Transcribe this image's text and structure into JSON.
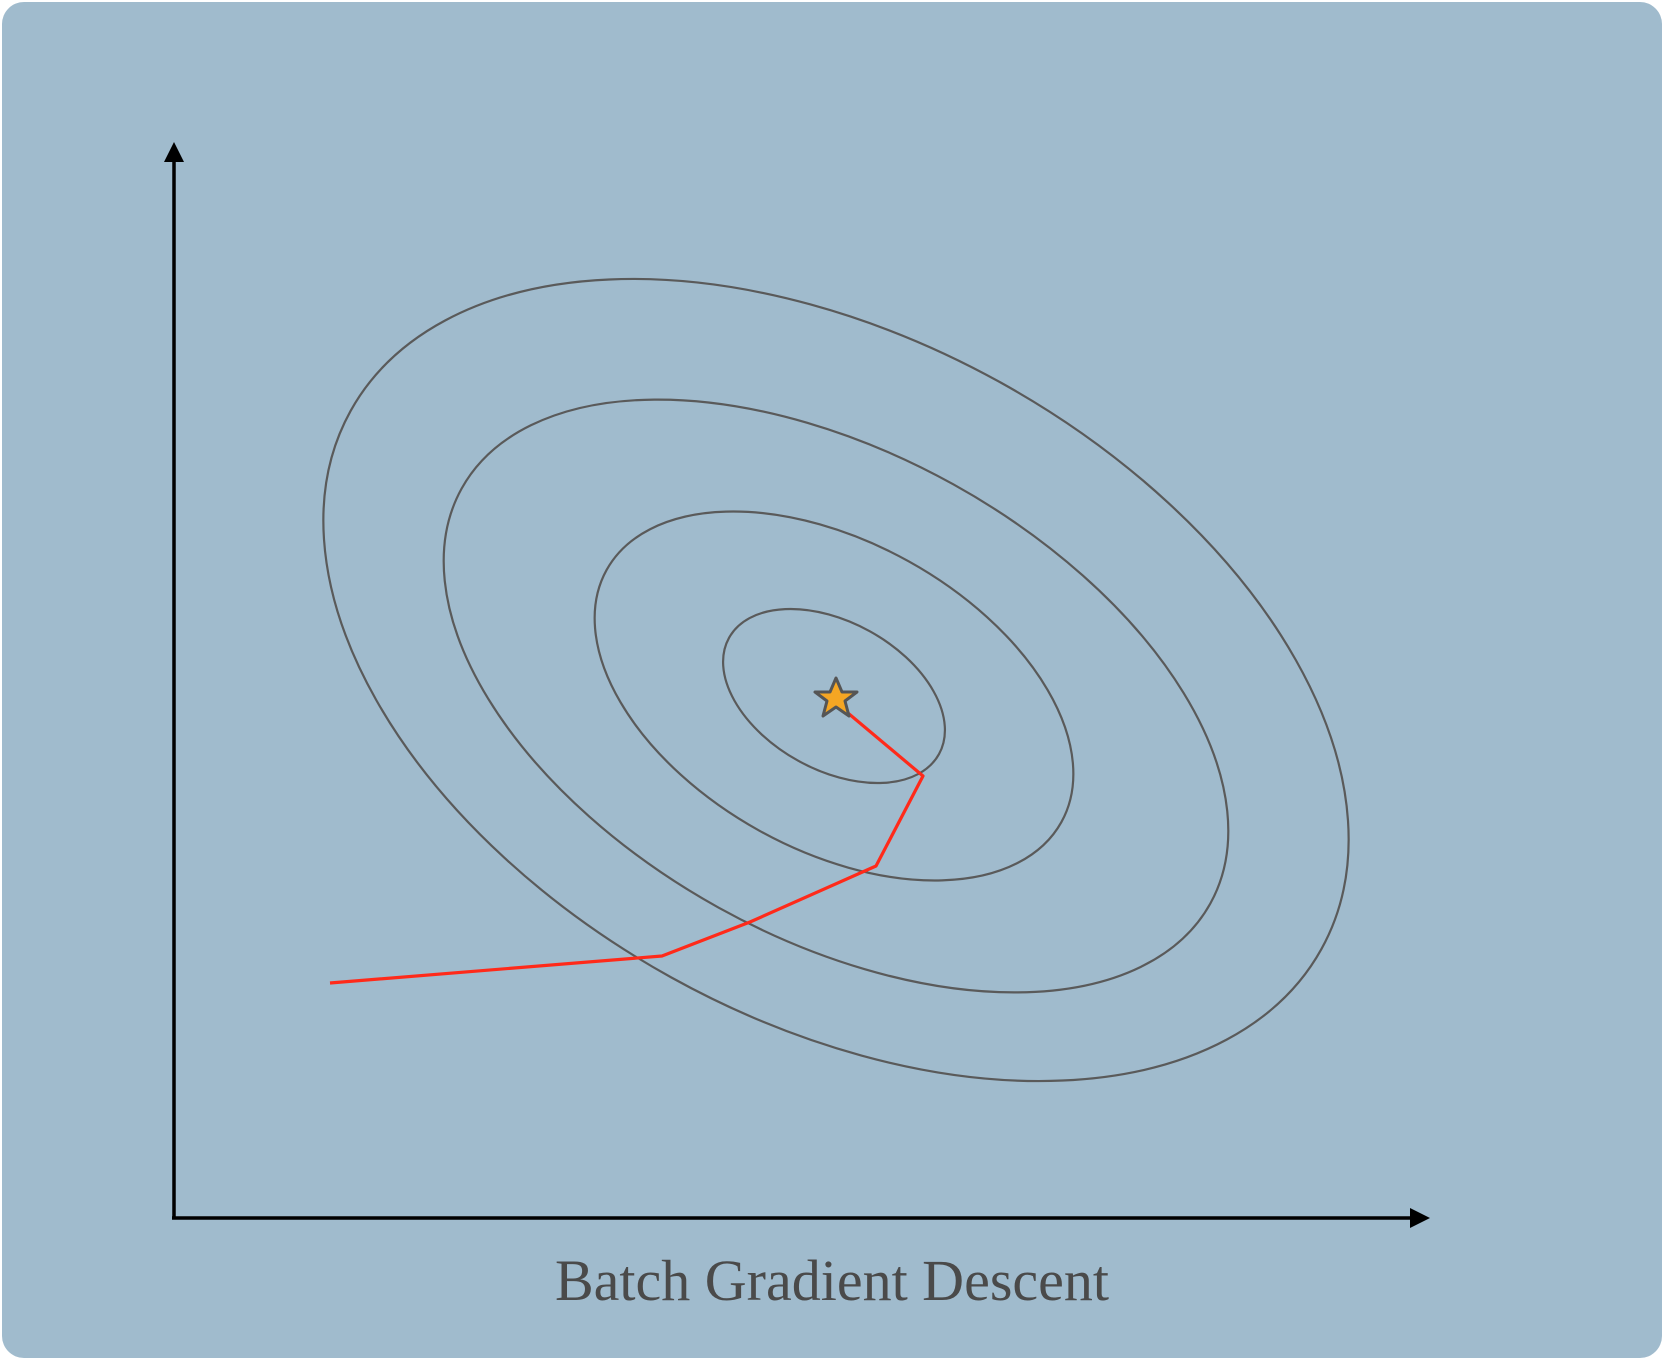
{
  "caption": "Batch Gradient Descent",
  "colors": {
    "background": "#a0bbcd",
    "axes": "#000000",
    "contour": "#555555",
    "path": "#ff2a1a",
    "star_fill": "#f5a623",
    "star_stroke": "#555555"
  },
  "icons": {
    "minimum_marker": "star-icon"
  }
}
